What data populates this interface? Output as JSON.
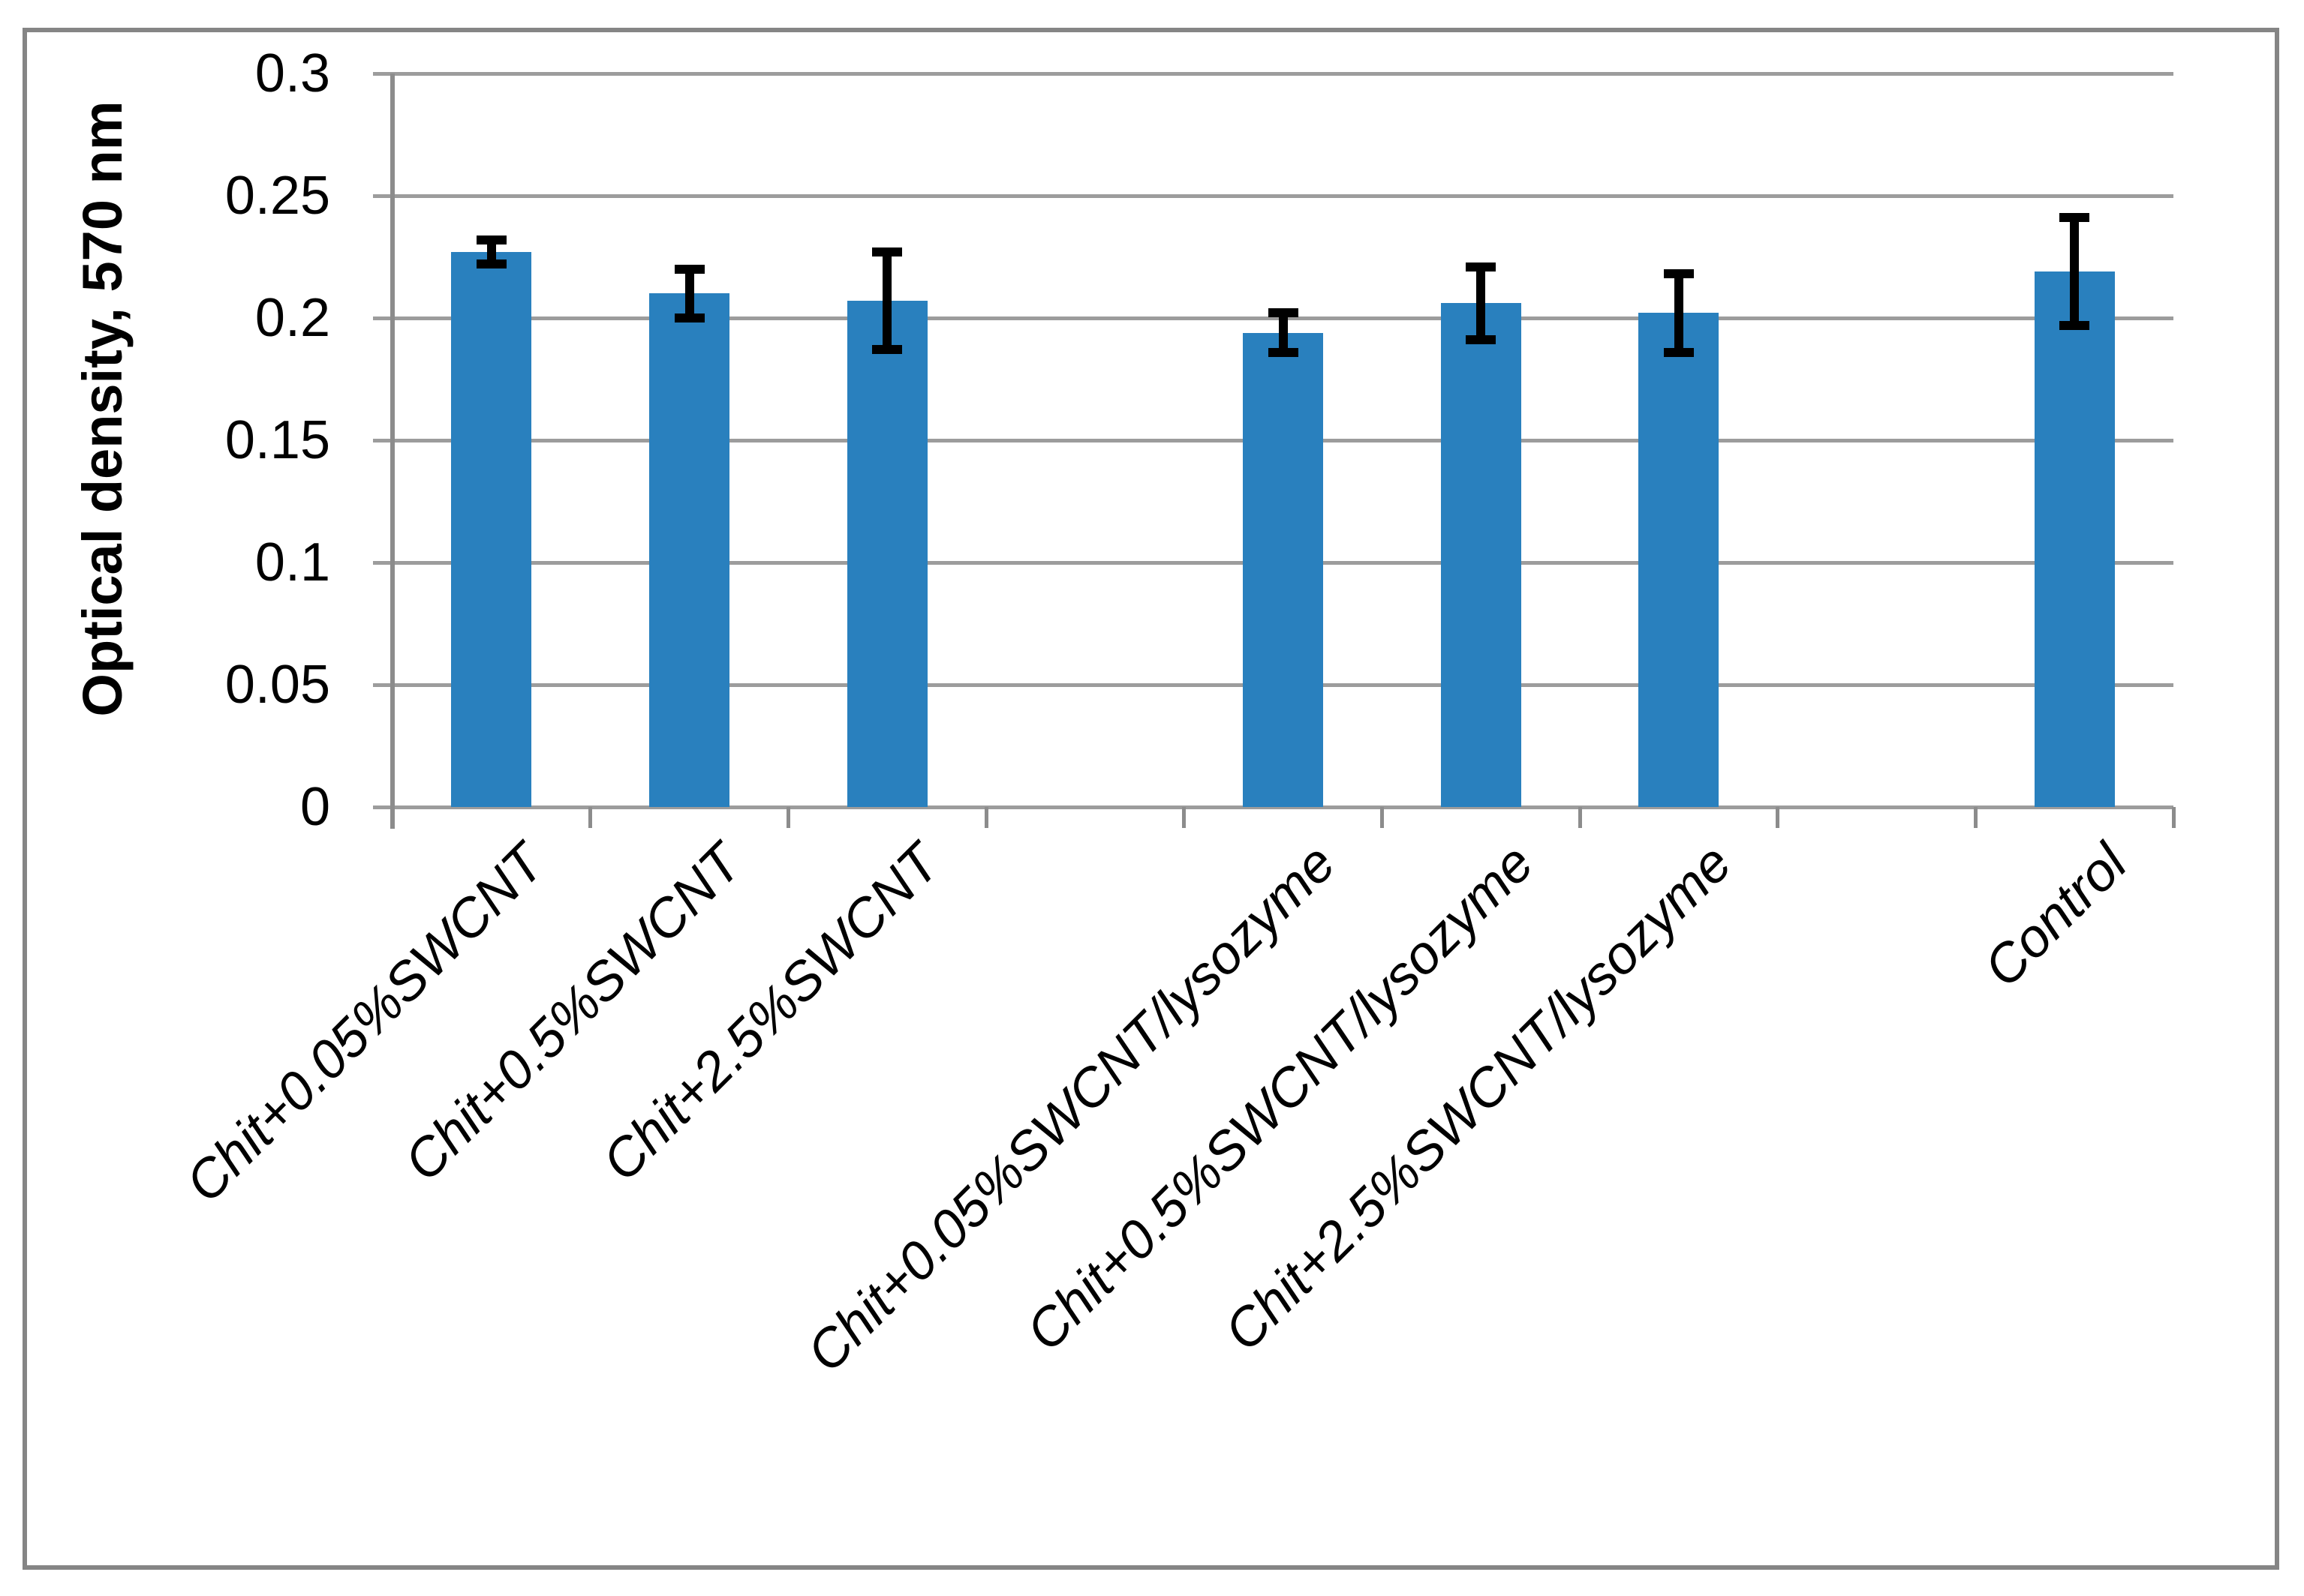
{
  "chart_data": {
    "type": "bar",
    "title": "",
    "xlabel": "",
    "ylabel": "Optical density, 570 nm",
    "categories": [
      "Chit+0.05%SWCNT",
      "Chit+0.5%SWCNT",
      "Chit+2.5%SWCNT",
      "Chit+0.05%SWCNT/lysozyme",
      "Chit+0.5%SWCNT/lysozyme",
      "Chit+2.5%SWCNT/lysozyme",
      "Control"
    ],
    "values": [
      0.227,
      0.21,
      0.207,
      0.194,
      0.206,
      0.202,
      0.219
    ],
    "error_bars": [
      0.005,
      0.01,
      0.02,
      0.008,
      0.015,
      0.016,
      0.022
    ],
    "ylim": [
      0,
      0.3
    ],
    "ytick_step": 0.05,
    "y_tick_labels": [
      "0.3",
      "0.25",
      "0.2",
      "0.15",
      "0.1",
      "0.05",
      "0"
    ],
    "grid": true,
    "legend": "none",
    "bar_color": "#2980BE",
    "error_color": "#000000",
    "slot_count": 9,
    "bar_slots": [
      1,
      2,
      3,
      5,
      6,
      7,
      9
    ]
  },
  "colors": {
    "background": "#FFFFFF",
    "gridline": "#9C9C9C",
    "axis": "#8C8C8C",
    "frame": "#858585",
    "text": "#000000"
  }
}
